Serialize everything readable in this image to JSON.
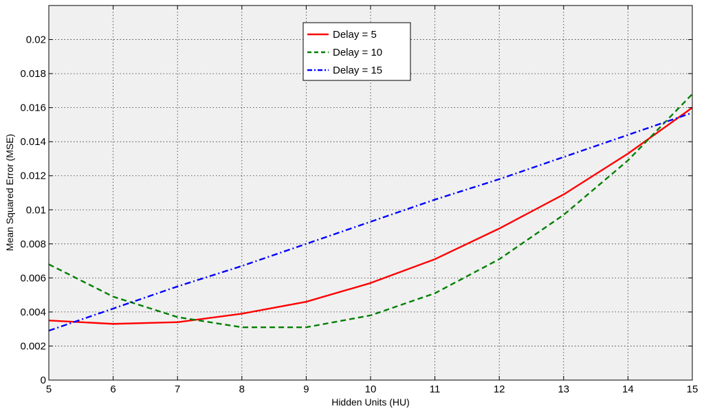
{
  "chart_data": {
    "type": "line",
    "title": "",
    "xlabel": "Hidden Units (HU)",
    "ylabel": "Mean Squared Error (MSE)",
    "x": [
      5,
      6,
      7,
      8,
      9,
      10,
      11,
      12,
      13,
      14,
      15
    ],
    "xlim": [
      5,
      15
    ],
    "ylim": [
      0,
      0.022
    ],
    "xticks": [
      "5",
      "6",
      "7",
      "8",
      "9",
      "10",
      "11",
      "12",
      "13",
      "14",
      "15"
    ],
    "yticks": [
      "0",
      "0.002",
      "0.004",
      "0.006",
      "0.008",
      "0.01",
      "0.012",
      "0.014",
      "0.016",
      "0.018",
      "0.02"
    ],
    "grid": true,
    "legend_position": "top-center",
    "background": "#f0f0f0",
    "series": [
      {
        "name": "Delay = 5",
        "color": "#ff0000",
        "style": "solid",
        "values": [
          0.0035,
          0.0033,
          0.0034,
          0.0039,
          0.0046,
          0.0057,
          0.0071,
          0.0089,
          0.0109,
          0.0133,
          0.016
        ]
      },
      {
        "name": "Delay = 10",
        "color": "#007f00",
        "style": "dashed",
        "values": [
          0.0068,
          0.0049,
          0.0037,
          0.0031,
          0.0031,
          0.0038,
          0.0051,
          0.0071,
          0.0097,
          0.0129,
          0.0168
        ]
      },
      {
        "name": "Delay = 15",
        "color": "#0000ff",
        "style": "dashdot",
        "values": [
          0.0029,
          0.0042,
          0.0055,
          0.0067,
          0.008,
          0.0093,
          0.0106,
          0.0118,
          0.0131,
          0.0144,
          0.0157
        ]
      }
    ]
  }
}
